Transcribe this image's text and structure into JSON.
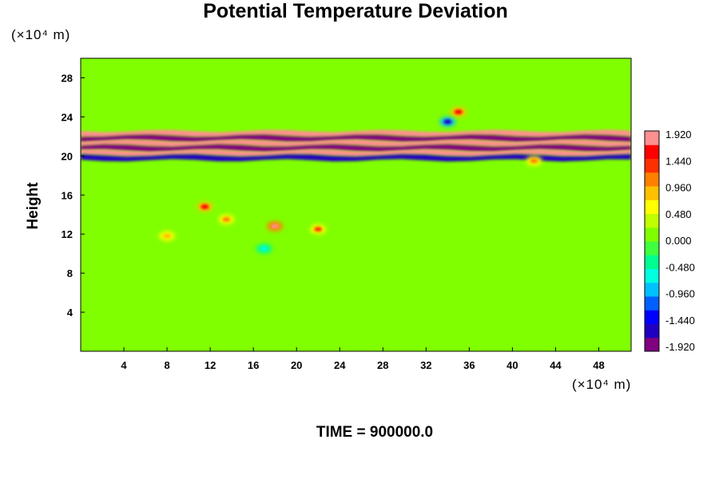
{
  "title": "Potential Temperature Deviation",
  "y_unit": "(×10⁴ m)",
  "x_unit": "(×10⁴ m)",
  "ylabel": "Height",
  "time_label": "TIME = 900000.0",
  "chart_data": {
    "type": "heatmap",
    "title": "Potential Temperature Deviation",
    "xlabel": "",
    "ylabel": "Height",
    "xlim": [
      0,
      51
    ],
    "ylim": [
      0,
      30
    ],
    "x_ticks": [
      4,
      8,
      12,
      16,
      20,
      24,
      28,
      32,
      36,
      40,
      44,
      48
    ],
    "y_ticks": [
      4,
      8,
      12,
      16,
      20,
      24,
      28
    ],
    "background_value": 0.0,
    "bands": [
      {
        "y": 22.3,
        "value": 1.9
      },
      {
        "y": 21.8,
        "value": -1.9
      },
      {
        "y": 21.3,
        "value": 1.9
      },
      {
        "y": 20.8,
        "value": -1.9
      },
      {
        "y": 20.3,
        "value": 1.9
      },
      {
        "y": 19.8,
        "value": -1.5
      }
    ],
    "features": [
      {
        "x": 11.5,
        "y": 14.8,
        "value": 1.5
      },
      {
        "x": 13.5,
        "y": 13.5,
        "value": 1.0
      },
      {
        "x": 18.0,
        "y": 12.8,
        "value": 1.9
      },
      {
        "x": 22.0,
        "y": 12.5,
        "value": 1.2
      },
      {
        "x": 8.0,
        "y": 11.8,
        "value": 0.9
      },
      {
        "x": 34.0,
        "y": 23.5,
        "value": -1.5
      },
      {
        "x": 35.0,
        "y": 24.5,
        "value": 1.5
      },
      {
        "x": 42.0,
        "y": 19.5,
        "value": 1.0
      },
      {
        "x": 17.0,
        "y": 10.5,
        "value": -0.6
      }
    ],
    "colorbar": {
      "ticks": [
        "1.920",
        "1.440",
        "0.960",
        "0.480",
        "0.000",
        "-0.480",
        "-0.960",
        "-1.440",
        "-1.920"
      ],
      "min": -1.92,
      "max": 1.92,
      "colors": [
        "#800080",
        "#2000c0",
        "#0000ff",
        "#0060ff",
        "#00c0ff",
        "#00ffe0",
        "#00ff90",
        "#40ff40",
        "#80ff00",
        "#c0ff00",
        "#ffff00",
        "#ffc000",
        "#ff8000",
        "#ff3000",
        "#ff0000",
        "#ff9090"
      ]
    }
  }
}
